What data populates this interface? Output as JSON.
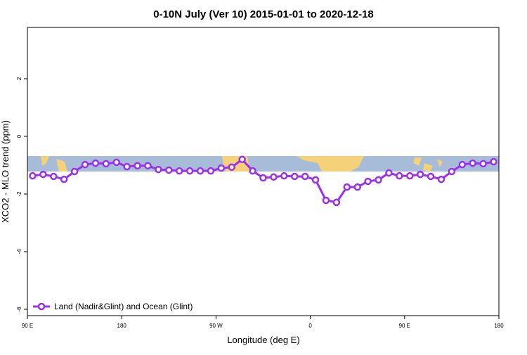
{
  "chart_data": {
    "type": "line",
    "title": "0-10N July (Ver 10)   2015-01-01 to 2020-12-18",
    "xlabel": "Longitude (deg E)",
    "ylabel": "XCO2 - MLO trend (ppm)",
    "x": [
      95,
      105,
      115,
      125,
      135,
      145,
      155,
      165,
      175,
      185,
      195,
      205,
      215,
      225,
      235,
      245,
      255,
      265,
      275,
      285,
      295,
      305,
      315,
      325,
      335,
      345,
      355,
      365,
      375,
      385,
      395,
      405,
      415,
      425,
      435,
      445,
      455,
      465,
      475,
      485,
      495,
      505,
      515,
      525,
      535
    ],
    "series": [
      {
        "name": "Land (Nadir&Glint) and Ocean (Glint)",
        "color": "#9b30e8",
        "values": [
          -1.37,
          -1.32,
          -1.39,
          -1.49,
          -1.22,
          -0.98,
          -0.93,
          -0.95,
          -0.9,
          -1.05,
          -1.02,
          -1.02,
          -1.15,
          -1.17,
          -1.2,
          -1.2,
          -1.2,
          -1.2,
          -1.1,
          -1.07,
          -0.8,
          -1.2,
          -1.44,
          -1.41,
          -1.37,
          -1.39,
          -1.39,
          -1.51,
          -2.22,
          -2.29,
          -1.76,
          -1.76,
          -1.56,
          -1.51,
          -1.27,
          -1.37,
          -1.37,
          -1.32,
          -1.39,
          -1.49,
          -1.22,
          -0.98,
          -0.93,
          -0.95,
          -0.88
        ]
      }
    ],
    "xlim": [
      90,
      540
    ],
    "xticks": [
      {
        "value": 90,
        "label": "90 E"
      },
      {
        "value": 180,
        "label": "180"
      },
      {
        "value": 270,
        "label": "90 W"
      },
      {
        "value": 360,
        "label": "0"
      },
      {
        "value": 450,
        "label": "90 E"
      },
      {
        "value": 540,
        "label": "180"
      }
    ],
    "ylim": [
      -6.22,
      3.78
    ],
    "yticks": [
      -6,
      -4,
      -2,
      0,
      2
    ],
    "legend": "bottom-left"
  }
}
